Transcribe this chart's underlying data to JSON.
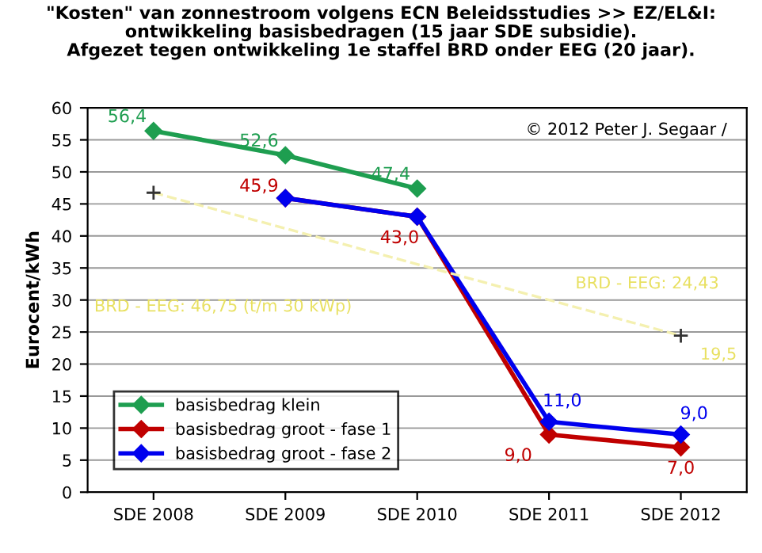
{
  "chart_data": {
    "type": "line",
    "title": "\"Kosten\" van zonnestroom volgens ECN Beleidsstudies >> EZ/EL&I:\nontwikkeling basisbedragen (15 jaar SDE subsidie).\nAfgezet tegen ontwikkeling 1e staffel BRD onder EEG (20 jaar).",
    "ylabel": "Eurocent/kWh",
    "categories": [
      "SDE 2008",
      "SDE 2009",
      "SDE 2010",
      "SDE 2011",
      "SDE 2012"
    ],
    "series": [
      {
        "name": "basisbedrag klein",
        "color": "#1e9e50",
        "values": [
          56.4,
          52.6,
          47.4,
          null,
          null
        ],
        "value_labels": [
          "56,4",
          "52,6",
          "47,4",
          null,
          null
        ]
      },
      {
        "name": "basisbedrag groot - fase 1",
        "color": "#c00000",
        "values": [
          null,
          45.9,
          43.0,
          9.0,
          7.0
        ],
        "value_labels": [
          null,
          "45,9",
          "43,0",
          "9,0",
          "7,0"
        ]
      },
      {
        "name": "basisbedrag groot - fase 2",
        "color": "#0000ee",
        "values": [
          null,
          45.9,
          43.0,
          11.0,
          9.0
        ],
        "value_labels": [
          null,
          null,
          null,
          "11,0",
          "9,0"
        ]
      },
      {
        "type": "line",
        "color": "#f4f0b0",
        "line_style": "dashed",
        "marker": "none",
        "x": [
          "SDE 2008",
          "SDE 2012"
        ],
        "values": [
          46.75,
          24.43
        ]
      },
      {
        "type": "scatter",
        "color": "#333333",
        "marker": "cross",
        "x": [
          "SDE 2008",
          "SDE 2012"
        ],
        "values": [
          46.75,
          24.43
        ]
      }
    ],
    "marker": "diamond",
    "ylim": [
      0,
      60
    ],
    "yticks": [
      0,
      5,
      10,
      15,
      20,
      25,
      30,
      35,
      40,
      45,
      50,
      55,
      60
    ],
    "grid": "y",
    "legend": "bottom left",
    "annotations": [
      "© 2012 Peter J. Segaar /",
      "BRD - EEG: 46,75 (t/m 30 kWp)",
      "BRD - EEG: 24,43",
      "19,5"
    ]
  }
}
